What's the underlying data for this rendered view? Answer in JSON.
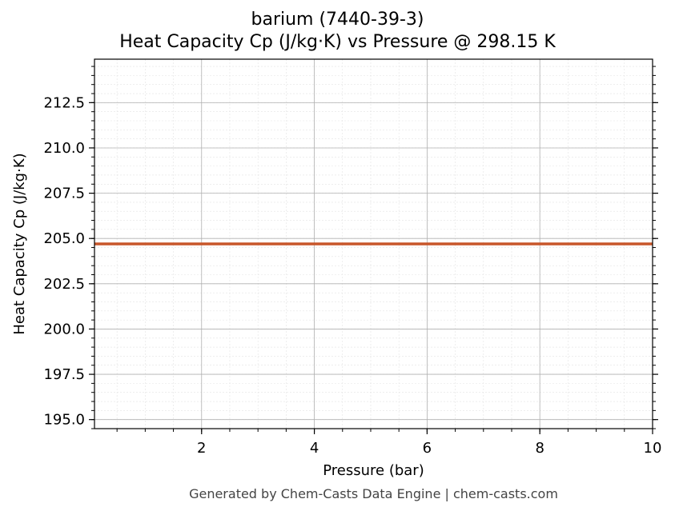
{
  "chart_data": {
    "type": "line",
    "title": "barium (7440-39-3)",
    "subtitle": "Heat Capacity Cp (J/kg·K) vs Pressure @ 298.15 K",
    "xlabel": "Pressure (bar)",
    "ylabel": "Heat Capacity Cp (J/kg·K)",
    "xlim": [
      0.1,
      10
    ],
    "ylim": [
      194.5,
      214.9
    ],
    "x_ticks": [
      2,
      4,
      6,
      8,
      10
    ],
    "x_tick_labels": [
      "2",
      "4",
      "6",
      "8",
      "10"
    ],
    "y_ticks": [
      195.0,
      197.5,
      200.0,
      202.5,
      205.0,
      207.5,
      210.0,
      212.5
    ],
    "y_tick_labels": [
      "195.0",
      "197.5",
      "200.0",
      "202.5",
      "205.0",
      "207.5",
      "210.0",
      "212.5"
    ],
    "grid": true,
    "series": [
      {
        "color": "#c8562a",
        "x": [
          0.1,
          10
        ],
        "y": [
          204.7,
          204.7
        ]
      }
    ]
  },
  "footer": "Generated by Chem-Casts Data Engine | chem-casts.com"
}
